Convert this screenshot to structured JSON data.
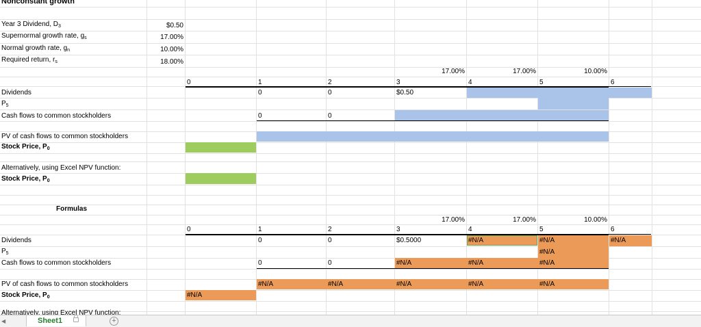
{
  "title": "Nonconstant growth",
  "inputs": {
    "d3_label": "Year 3 Dividend, D",
    "d3_sub": "3",
    "d3_value": "$0.50",
    "gs_label": "Supernormal growth rate, g",
    "gs_sub": "s",
    "gs_value": "17.00%",
    "gn_label": "Normal growth rate, g",
    "gn_sub": "n",
    "gn_value": "10.00%",
    "rs_label": "Required return, r",
    "rs_sub": "s",
    "rs_value": "18.00%"
  },
  "top": {
    "rates": [
      "17.00%",
      "17.00%",
      "10.00%"
    ],
    "periods": [
      "0",
      "1",
      "2",
      "3",
      "4",
      "5",
      "6"
    ],
    "dividends_label": "Dividends",
    "p5_label": "P",
    "p5_sub": "5",
    "cf_label": "Cash flows to common stockholders",
    "div_values": [
      "0",
      "0",
      "$0.50"
    ],
    "cf_values": [
      "0",
      "0"
    ],
    "pv_label": "PV of cash flows to common stockholders",
    "price_label": "Stock Price, P",
    "price_sub": "0",
    "alt_label": "Alternatively, using Excel NPV function:",
    "alt_price_label": "Stock Price, P",
    "alt_price_sub": "0"
  },
  "formulas": {
    "heading": "Formulas",
    "rates": [
      "17.00%",
      "17.00%",
      "10.00%"
    ],
    "periods": [
      "0",
      "1",
      "2",
      "3",
      "4",
      "5",
      "6"
    ],
    "dividends_label": "Dividends",
    "div_values": [
      "0",
      "0",
      "$0.5000",
      "#N/A",
      "#N/A",
      "#N/A"
    ],
    "p5_label": "P",
    "p5_sub": "5",
    "p5_value": "#N/A",
    "cf_label": "Cash flows to common stockholders",
    "cf_values": [
      "0",
      "0",
      "#N/A",
      "#N/A",
      "#N/A"
    ],
    "pv_label": "PV of cash flows to common stockholders",
    "pv_values": [
      "#N/A",
      "#N/A",
      "#N/A",
      "#N/A",
      "#N/A"
    ],
    "price_label": "Stock Price, P",
    "price_sub": "0",
    "price_value": "#N/A",
    "cut_label": "Alternatively, using Excel NPV function:"
  },
  "sheet_tab": "Sheet1",
  "add_tab": "+",
  "colors": {
    "blue": "#a9c4e8",
    "green": "#9fcc5f",
    "orange": "#eb9a58"
  }
}
